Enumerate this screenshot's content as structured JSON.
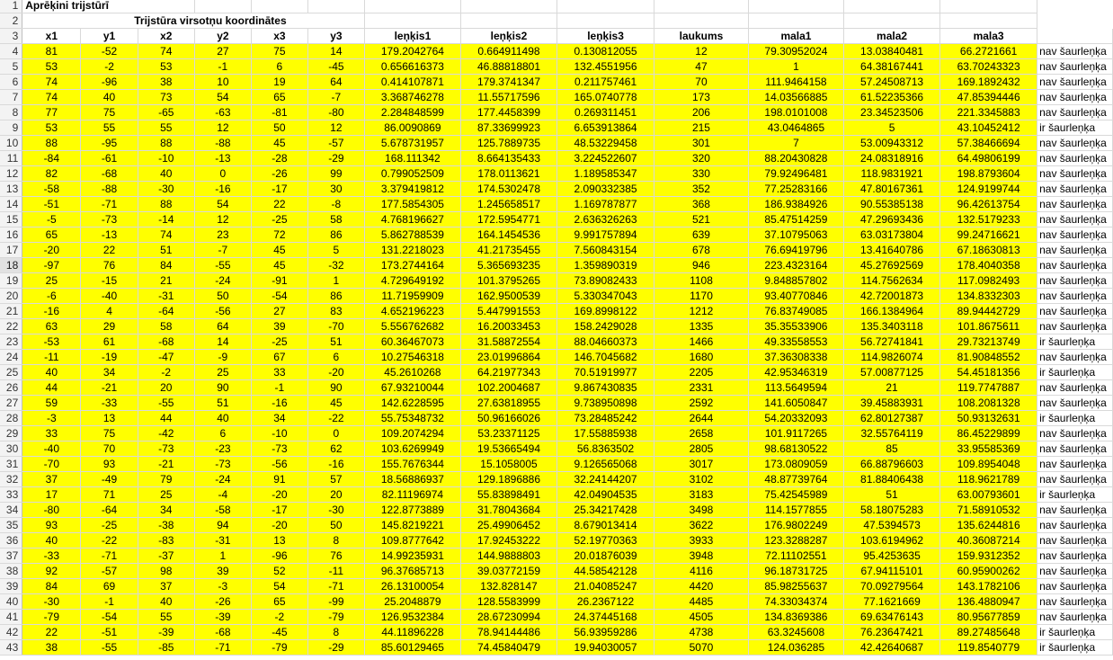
{
  "sheet": {
    "title": "Aprēķini trijstūrī",
    "subtitle": "Trijstūra virsotņu koordinātes",
    "selected_row": "18",
    "headers": [
      "x1",
      "y1",
      "x2",
      "y2",
      "x3",
      "y3",
      "leņķis1",
      "leņķis2",
      "leņķis3",
      "laukums",
      "mala1",
      "mala2",
      "mala3",
      ""
    ],
    "rows": [
      {
        "n": "4",
        "x1": "81",
        "y1": "-52",
        "x2": "74",
        "y2": "27",
        "x3": "75",
        "y3": "14",
        "a1": "179.2042764",
        "a2": "0.664911498",
        "a3": "0.130812055",
        "area": "12",
        "m1": "79.30952024",
        "m2": "13.03840481",
        "m3": "66.2721661",
        "res": "nav šaurleņķa"
      },
      {
        "n": "5",
        "x1": "53",
        "y1": "-2",
        "x2": "53",
        "y2": "-1",
        "x3": "6",
        "y3": "-45",
        "a1": "0.656616373",
        "a2": "46.88818801",
        "a3": "132.4551956",
        "area": "47",
        "m1": "1",
        "m2": "64.38167441",
        "m3": "63.70243323",
        "res": "nav šaurleņķa"
      },
      {
        "n": "6",
        "x1": "74",
        "y1": "-96",
        "x2": "38",
        "y2": "10",
        "x3": "19",
        "y3": "64",
        "a1": "0.414107871",
        "a2": "179.3741347",
        "a3": "0.211757461",
        "area": "70",
        "m1": "111.9464158",
        "m2": "57.24508713",
        "m3": "169.1892432",
        "res": "nav šaurleņķa"
      },
      {
        "n": "7",
        "x1": "74",
        "y1": "40",
        "x2": "73",
        "y2": "54",
        "x3": "65",
        "y3": "-7",
        "a1": "3.368746278",
        "a2": "11.55717596",
        "a3": "165.0740778",
        "area": "173",
        "m1": "14.03566885",
        "m2": "61.52235366",
        "m3": "47.85394446",
        "res": "nav šaurleņķa"
      },
      {
        "n": "8",
        "x1": "77",
        "y1": "75",
        "x2": "-65",
        "y2": "-63",
        "x3": "-81",
        "y3": "-80",
        "a1": "2.284848599",
        "a2": "177.4458399",
        "a3": "0.269311451",
        "area": "206",
        "m1": "198.0101008",
        "m2": "23.34523506",
        "m3": "221.3345883",
        "res": "nav šaurleņķa"
      },
      {
        "n": "9",
        "x1": "53",
        "y1": "55",
        "x2": "55",
        "y2": "12",
        "x3": "50",
        "y3": "12",
        "a1": "86.0090869",
        "a2": "87.33699923",
        "a3": "6.653913864",
        "area": "215",
        "m1": "43.0464865",
        "m2": "5",
        "m3": "43.10452412",
        "res": "ir šaurleņķa"
      },
      {
        "n": "10",
        "x1": "88",
        "y1": "-95",
        "x2": "88",
        "y2": "-88",
        "x3": "45",
        "y3": "-57",
        "a1": "5.678731957",
        "a2": "125.7889735",
        "a3": "48.53229458",
        "area": "301",
        "m1": "7",
        "m2": "53.00943312",
        "m3": "57.38466694",
        "res": "nav šaurleņķa"
      },
      {
        "n": "11",
        "x1": "-84",
        "y1": "-61",
        "x2": "-10",
        "y2": "-13",
        "x3": "-28",
        "y3": "-29",
        "a1": "168.111342",
        "a2": "8.664135433",
        "a3": "3.224522607",
        "area": "320",
        "m1": "88.20430828",
        "m2": "24.08318916",
        "m3": "64.49806199",
        "res": "nav šaurleņķa"
      },
      {
        "n": "12",
        "x1": "82",
        "y1": "-68",
        "x2": "40",
        "y2": "0",
        "x3": "-26",
        "y3": "99",
        "a1": "0.799052509",
        "a2": "178.0113621",
        "a3": "1.189585347",
        "area": "330",
        "m1": "79.92496481",
        "m2": "118.9831921",
        "m3": "198.8793604",
        "res": "nav šaurleņķa"
      },
      {
        "n": "13",
        "x1": "-58",
        "y1": "-88",
        "x2": "-30",
        "y2": "-16",
        "x3": "-17",
        "y3": "30",
        "a1": "3.379419812",
        "a2": "174.5302478",
        "a3": "2.090332385",
        "area": "352",
        "m1": "77.25283166",
        "m2": "47.80167361",
        "m3": "124.9199744",
        "res": "nav šaurleņķa"
      },
      {
        "n": "14",
        "x1": "-51",
        "y1": "-71",
        "x2": "88",
        "y2": "54",
        "x3": "22",
        "y3": "-8",
        "a1": "177.5854305",
        "a2": "1.245658517",
        "a3": "1.169787877",
        "area": "368",
        "m1": "186.9384926",
        "m2": "90.55385138",
        "m3": "96.42613754",
        "res": "nav šaurleņķa"
      },
      {
        "n": "15",
        "x1": "-5",
        "y1": "-73",
        "x2": "-14",
        "y2": "12",
        "x3": "-25",
        "y3": "58",
        "a1": "4.768196627",
        "a2": "172.5954771",
        "a3": "2.636326263",
        "area": "521",
        "m1": "85.47514259",
        "m2": "47.29693436",
        "m3": "132.5179233",
        "res": "nav šaurleņķa"
      },
      {
        "n": "16",
        "x1": "65",
        "y1": "-13",
        "x2": "74",
        "y2": "23",
        "x3": "72",
        "y3": "86",
        "a1": "5.862788539",
        "a2": "164.1454536",
        "a3": "9.991757894",
        "area": "639",
        "m1": "37.10795063",
        "m2": "63.03173804",
        "m3": "99.24716621",
        "res": "nav šaurleņķa"
      },
      {
        "n": "17",
        "x1": "-20",
        "y1": "22",
        "x2": "51",
        "y2": "-7",
        "x3": "45",
        "y3": "5",
        "a1": "131.2218023",
        "a2": "41.21735455",
        "a3": "7.560843154",
        "area": "678",
        "m1": "76.69419796",
        "m2": "13.41640786",
        "m3": "67.18630813",
        "res": "nav šaurleņķa"
      },
      {
        "n": "18",
        "x1": "-97",
        "y1": "76",
        "x2": "84",
        "y2": "-55",
        "x3": "45",
        "y3": "-32",
        "a1": "173.2744164",
        "a2": "5.365693235",
        "a3": "1.359890319",
        "area": "946",
        "m1": "223.4323164",
        "m2": "45.27692569",
        "m3": "178.4040358",
        "res": "nav šaurleņķa"
      },
      {
        "n": "19",
        "x1": "25",
        "y1": "-15",
        "x2": "21",
        "y2": "-24",
        "x3": "-91",
        "y3": "1",
        "a1": "4.729649192",
        "a2": "101.3795265",
        "a3": "73.89082433",
        "area": "1108",
        "m1": "9.848857802",
        "m2": "114.7562634",
        "m3": "117.0982493",
        "res": "nav šaurleņķa"
      },
      {
        "n": "20",
        "x1": "-6",
        "y1": "-40",
        "x2": "-31",
        "y2": "50",
        "x3": "-54",
        "y3": "86",
        "a1": "11.71959909",
        "a2": "162.9500539",
        "a3": "5.330347043",
        "area": "1170",
        "m1": "93.40770846",
        "m2": "42.72001873",
        "m3": "134.8332303",
        "res": "nav šaurleņķa"
      },
      {
        "n": "21",
        "x1": "-16",
        "y1": "4",
        "x2": "-64",
        "y2": "-56",
        "x3": "27",
        "y3": "83",
        "a1": "4.652196223",
        "a2": "5.447991553",
        "a3": "169.8998122",
        "area": "1212",
        "m1": "76.83749085",
        "m2": "166.1384964",
        "m3": "89.94442729",
        "res": "nav šaurleņķa"
      },
      {
        "n": "22",
        "x1": "63",
        "y1": "29",
        "x2": "58",
        "y2": "64",
        "x3": "39",
        "y3": "-70",
        "a1": "5.556762682",
        "a2": "16.20033453",
        "a3": "158.2429028",
        "area": "1335",
        "m1": "35.35533906",
        "m2": "135.3403118",
        "m3": "101.8675611",
        "res": "nav šaurleņķa"
      },
      {
        "n": "23",
        "x1": "-53",
        "y1": "61",
        "x2": "-68",
        "y2": "14",
        "x3": "-25",
        "y3": "51",
        "a1": "60.36467073",
        "a2": "31.58872554",
        "a3": "88.04660373",
        "area": "1466",
        "m1": "49.33558553",
        "m2": "56.72741841",
        "m3": "29.73213749",
        "res": "ir šaurleņķa"
      },
      {
        "n": "24",
        "x1": "-11",
        "y1": "-19",
        "x2": "-47",
        "y2": "-9",
        "x3": "67",
        "y3": "6",
        "a1": "10.27546318",
        "a2": "23.01996864",
        "a3": "146.7045682",
        "area": "1680",
        "m1": "37.36308338",
        "m2": "114.9826074",
        "m3": "81.90848552",
        "res": "nav šaurleņķa"
      },
      {
        "n": "25",
        "x1": "40",
        "y1": "34",
        "x2": "-2",
        "y2": "25",
        "x3": "33",
        "y3": "-20",
        "a1": "45.2610268",
        "a2": "64.21977343",
        "a3": "70.51919977",
        "area": "2205",
        "m1": "42.95346319",
        "m2": "57.00877125",
        "m3": "54.45181356",
        "res": "ir šaurleņķa"
      },
      {
        "n": "26",
        "x1": "44",
        "y1": "-21",
        "x2": "20",
        "y2": "90",
        "x3": "-1",
        "y3": "90",
        "a1": "67.93210044",
        "a2": "102.2004687",
        "a3": "9.867430835",
        "area": "2331",
        "m1": "113.5649594",
        "m2": "21",
        "m3": "119.7747887",
        "res": "nav šaurleņķa"
      },
      {
        "n": "27",
        "x1": "59",
        "y1": "-33",
        "x2": "-55",
        "y2": "51",
        "x3": "-16",
        "y3": "45",
        "a1": "142.6228595",
        "a2": "27.63818955",
        "a3": "9.738950898",
        "area": "2592",
        "m1": "141.6050847",
        "m2": "39.45883931",
        "m3": "108.2081328",
        "res": "nav šaurleņķa"
      },
      {
        "n": "28",
        "x1": "-3",
        "y1": "13",
        "x2": "44",
        "y2": "40",
        "x3": "34",
        "y3": "-22",
        "a1": "55.75348732",
        "a2": "50.96166026",
        "a3": "73.28485242",
        "area": "2644",
        "m1": "54.20332093",
        "m2": "62.80127387",
        "m3": "50.93132631",
        "res": "ir šaurleņķa"
      },
      {
        "n": "29",
        "x1": "33",
        "y1": "75",
        "x2": "-42",
        "y2": "6",
        "x3": "-10",
        "y3": "0",
        "a1": "109.2074294",
        "a2": "53.23371125",
        "a3": "17.55885938",
        "area": "2658",
        "m1": "101.9117265",
        "m2": "32.55764119",
        "m3": "86.45229899",
        "res": "nav šaurleņķa"
      },
      {
        "n": "30",
        "x1": "-40",
        "y1": "70",
        "x2": "-73",
        "y2": "-23",
        "x3": "-73",
        "y3": "62",
        "a1": "103.6269949",
        "a2": "19.53665494",
        "a3": "56.8363502",
        "area": "2805",
        "m1": "98.68130522",
        "m2": "85",
        "m3": "33.95585369",
        "res": "nav šaurleņķa"
      },
      {
        "n": "31",
        "x1": "-70",
        "y1": "93",
        "x2": "-21",
        "y2": "-73",
        "x3": "-56",
        "y3": "-16",
        "a1": "155.7676344",
        "a2": "15.1058005",
        "a3": "9.126565068",
        "area": "3017",
        "m1": "173.0809059",
        "m2": "66.88796603",
        "m3": "109.8954048",
        "res": "nav šaurleņķa"
      },
      {
        "n": "32",
        "x1": "37",
        "y1": "-49",
        "x2": "79",
        "y2": "-24",
        "x3": "91",
        "y3": "57",
        "a1": "18.56886937",
        "a2": "129.1896886",
        "a3": "32.24144207",
        "area": "3102",
        "m1": "48.87739764",
        "m2": "81.88406438",
        "m3": "118.9621789",
        "res": "nav šaurleņķa"
      },
      {
        "n": "33",
        "x1": "17",
        "y1": "71",
        "x2": "25",
        "y2": "-4",
        "x3": "-20",
        "y3": "20",
        "a1": "82.11196974",
        "a2": "55.83898491",
        "a3": "42.04904535",
        "area": "3183",
        "m1": "75.42545989",
        "m2": "51",
        "m3": "63.00793601",
        "res": "ir šaurleņķa"
      },
      {
        "n": "34",
        "x1": "-80",
        "y1": "-64",
        "x2": "34",
        "y2": "-58",
        "x3": "-17",
        "y3": "-30",
        "a1": "122.8773889",
        "a2": "31.78043684",
        "a3": "25.34217428",
        "area": "3498",
        "m1": "114.1577855",
        "m2": "58.18075283",
        "m3": "71.58910532",
        "res": "nav šaurleņķa"
      },
      {
        "n": "35",
        "x1": "93",
        "y1": "-25",
        "x2": "-38",
        "y2": "94",
        "x3": "-20",
        "y3": "50",
        "a1": "145.8219221",
        "a2": "25.49906452",
        "a3": "8.679013414",
        "area": "3622",
        "m1": "176.9802249",
        "m2": "47.5394573",
        "m3": "135.6244816",
        "res": "nav šaurleņķa"
      },
      {
        "n": "36",
        "x1": "40",
        "y1": "-22",
        "x2": "-83",
        "y2": "-31",
        "x3": "13",
        "y3": "8",
        "a1": "109.8777642",
        "a2": "17.92453222",
        "a3": "52.19770363",
        "area": "3933",
        "m1": "123.3288287",
        "m2": "103.6194962",
        "m3": "40.36087214",
        "res": "nav šaurleņķa"
      },
      {
        "n": "37",
        "x1": "-33",
        "y1": "-71",
        "x2": "-37",
        "y2": "1",
        "x3": "-96",
        "y3": "76",
        "a1": "14.99235931",
        "a2": "144.9888803",
        "a3": "20.01876039",
        "area": "3948",
        "m1": "72.11102551",
        "m2": "95.4253635",
        "m3": "159.9312352",
        "res": "nav šaurleņķa"
      },
      {
        "n": "38",
        "x1": "92",
        "y1": "-57",
        "x2": "98",
        "y2": "39",
        "x3": "52",
        "y3": "-11",
        "a1": "96.37685713",
        "a2": "39.03772159",
        "a3": "44.58542128",
        "area": "4116",
        "m1": "96.18731725",
        "m2": "67.94115101",
        "m3": "60.95900262",
        "res": "nav šaurleņķa"
      },
      {
        "n": "39",
        "x1": "84",
        "y1": "69",
        "x2": "37",
        "y2": "-3",
        "x3": "54",
        "y3": "-71",
        "a1": "26.13100054",
        "a2": "132.828147",
        "a3": "21.04085247",
        "area": "4420",
        "m1": "85.98255637",
        "m2": "70.09279564",
        "m3": "143.1782106",
        "res": "nav šaurleņķa"
      },
      {
        "n": "40",
        "x1": "-30",
        "y1": "-1",
        "x2": "40",
        "y2": "-26",
        "x3": "65",
        "y3": "-99",
        "a1": "25.2048879",
        "a2": "128.5583999",
        "a3": "26.2367122",
        "area": "4485",
        "m1": "74.33034374",
        "m2": "77.1621669",
        "m3": "136.4880947",
        "res": "nav šaurleņķa"
      },
      {
        "n": "41",
        "x1": "-79",
        "y1": "-54",
        "x2": "55",
        "y2": "-39",
        "x3": "-2",
        "y3": "-79",
        "a1": "126.9532384",
        "a2": "28.67230994",
        "a3": "24.37445168",
        "area": "4505",
        "m1": "134.8369386",
        "m2": "69.63476143",
        "m3": "80.95677859",
        "res": "nav šaurleņķa"
      },
      {
        "n": "42",
        "x1": "22",
        "y1": "-51",
        "x2": "-39",
        "y2": "-68",
        "x3": "-45",
        "y3": "8",
        "a1": "44.11896228",
        "a2": "78.94144486",
        "a3": "56.93959286",
        "area": "4738",
        "m1": "63.3245608",
        "m2": "76.23647421",
        "m3": "89.27485648",
        "res": "ir šaurleņķa"
      },
      {
        "n": "43",
        "x1": "38",
        "y1": "-55",
        "x2": "-85",
        "y2": "-71",
        "x3": "-79",
        "y3": "-29",
        "a1": "85.60129465",
        "a2": "74.45840479",
        "a3": "19.94030057",
        "area": "5070",
        "m1": "124.036285",
        "m2": "42.42640687",
        "m3": "119.8540779",
        "res": "ir šaurleņķa"
      }
    ]
  }
}
